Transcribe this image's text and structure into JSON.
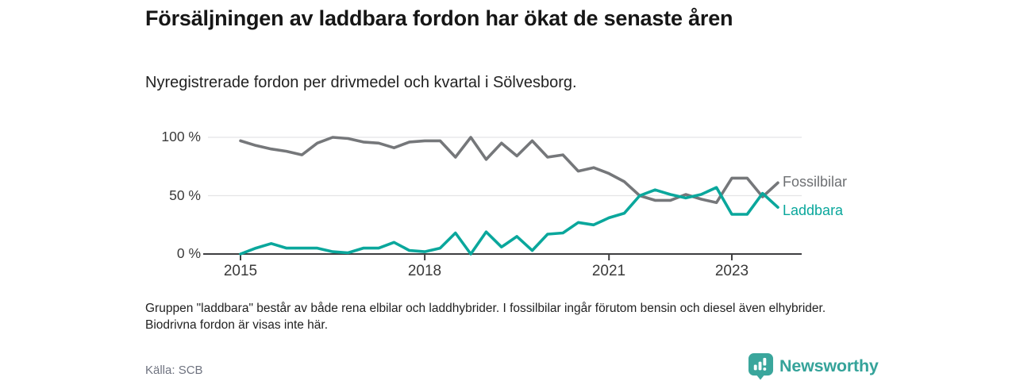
{
  "header": {
    "title": "Försäljningen av laddbara fordon har ökat de senaste åren",
    "subtitle": "Nyregistrerade fordon per drivmedel och kvartal i Sölvesborg."
  },
  "chart_data": {
    "type": "line",
    "x_unit": "quarter",
    "categories": [
      "2015 Q1",
      "2015 Q2",
      "2015 Q3",
      "2015 Q4",
      "2016 Q1",
      "2016 Q2",
      "2016 Q3",
      "2016 Q4",
      "2017 Q1",
      "2017 Q2",
      "2017 Q3",
      "2017 Q4",
      "2018 Q1",
      "2018 Q2",
      "2018 Q3",
      "2018 Q4",
      "2019 Q1",
      "2019 Q2",
      "2019 Q3",
      "2019 Q4",
      "2020 Q1",
      "2020 Q2",
      "2020 Q3",
      "2020 Q4",
      "2021 Q1",
      "2021 Q2",
      "2021 Q3",
      "2021 Q4",
      "2022 Q1",
      "2022 Q2",
      "2022 Q3",
      "2022 Q4",
      "2023 Q1",
      "2023 Q2",
      "2023 Q3",
      "2023 Q4"
    ],
    "series": [
      {
        "name": "Fossilbilar",
        "color": "#75777a",
        "values": [
          97,
          93,
          90,
          88,
          85,
          95,
          100,
          99,
          96,
          95,
          91,
          96,
          97,
          97,
          83,
          100,
          81,
          95,
          84,
          97,
          83,
          85,
          71,
          74,
          69,
          62,
          50,
          46,
          46,
          51,
          47,
          44,
          65,
          65,
          49,
          61
        ]
      },
      {
        "name": "Laddbara",
        "color": "#0aa79c",
        "values": [
          0,
          5,
          9,
          5,
          5,
          5,
          2,
          1,
          5,
          5,
          10,
          3,
          2,
          5,
          18,
          0,
          19,
          6,
          15,
          3,
          17,
          18,
          27,
          25,
          31,
          35,
          50,
          55,
          51,
          48,
          51,
          57,
          34,
          34,
          52,
          40
        ]
      }
    ],
    "ylabel": "",
    "xlabel": "",
    "ylim": [
      0,
      100
    ],
    "grid": "horizontal",
    "legend_position": "right-of-line-ends",
    "ytick_labels": [
      "100 %",
      "50 %",
      "0 %"
    ],
    "ytick_values": [
      100,
      50,
      0
    ],
    "xticks": [
      {
        "label": "2015",
        "index": 0
      },
      {
        "label": "2018",
        "index": 12
      },
      {
        "label": "2021",
        "index": 24
      },
      {
        "label": "2023",
        "index": 32
      }
    ]
  },
  "footnote": "Gruppen \"laddbara\" består av både rena elbilar och laddhybrider. I fossilbilar ingår förutom bensin och diesel även elhybrider. Biodrivna fordon är visas inte här.",
  "source": "Källa: SCB",
  "brand": {
    "name": "Newsworthy",
    "color": "#35a39a",
    "icon": "bar-chart-speech-bubble-icon"
  }
}
